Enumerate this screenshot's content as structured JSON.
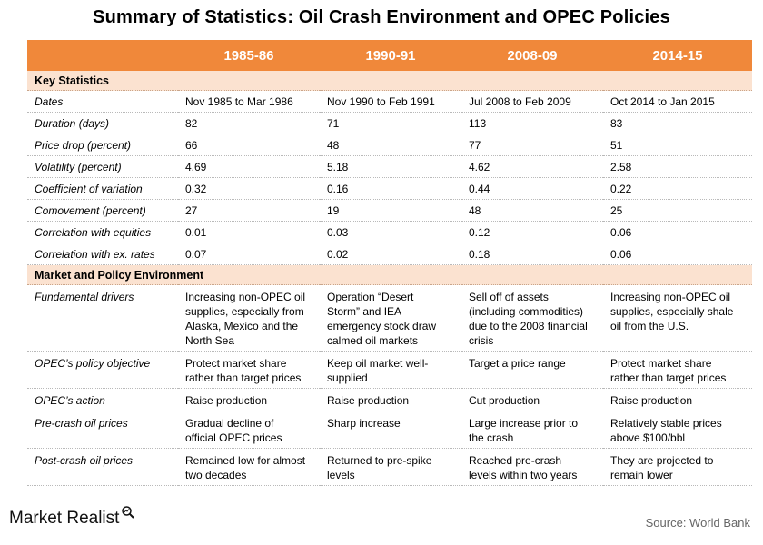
{
  "title": "Summary of Statistics: Oil Crash Environment and OPEC Policies",
  "columns": [
    "1985-86",
    "1990-91",
    "2008-09",
    "2014-15"
  ],
  "sections": {
    "key_stats": "Key Statistics",
    "market_env": "Market and Policy Environment"
  },
  "key_stats_rows": [
    {
      "label": "Dates",
      "values": [
        "Nov 1985 to Mar 1986",
        "Nov 1990 to Feb 1991",
        "Jul 2008 to Feb 2009",
        "Oct 2014 to Jan 2015"
      ]
    },
    {
      "label": "Duration (days)",
      "values": [
        "82",
        "71",
        "113",
        "83"
      ]
    },
    {
      "label": "Price drop (percent)",
      "values": [
        "66",
        "48",
        "77",
        "51"
      ]
    },
    {
      "label": "Volatility (percent)",
      "values": [
        "4.69",
        "5.18",
        "4.62",
        "2.58"
      ]
    },
    {
      "label": "Coefficient of variation",
      "values": [
        "0.32",
        "0.16",
        "0.44",
        "0.22"
      ]
    },
    {
      "label": "Comovement (percent)",
      "values": [
        "27",
        "19",
        "48",
        "25"
      ]
    },
    {
      "label": "Correlation with equities",
      "values": [
        "0.01",
        "0.03",
        "0.12",
        "0.06"
      ]
    },
    {
      "label": "Correlation with ex. rates",
      "values": [
        "0.07",
        "0.02",
        "0.18",
        "0.06"
      ]
    }
  ],
  "policy_rows": [
    {
      "label": "Fundamental drivers",
      "values": [
        "Increasing non-OPEC oil supplies, especially from Alaska, Mexico and the North Sea",
        "Operation “Desert Storm” and IEA emergency stock draw calmed oil markets",
        "Sell off of assets (including commodities) due to the 2008 financial crisis",
        "Increasing non-OPEC oil supplies, especially shale oil from the U.S."
      ]
    },
    {
      "label": "OPEC’s policy objective",
      "values": [
        "Protect market share rather than target prices",
        "Keep oil market well-supplied",
        "Target a price range",
        "Protect market share rather than target prices"
      ]
    },
    {
      "label": "OPEC’s action",
      "values": [
        "Raise production",
        "Raise production",
        "Cut production",
        "Raise production"
      ]
    },
    {
      "label": "Pre-crash oil prices",
      "values": [
        "Gradual decline of official OPEC prices",
        "Sharp increase",
        "Large increase prior to the crash",
        "Relatively stable prices above $100/bbl"
      ]
    },
    {
      "label": "Post-crash oil prices",
      "values": [
        "Remained low for almost two decades",
        "Returned to pre-spike levels",
        "Reached pre-crash levels within two years",
        "They are projected to remain lower"
      ]
    }
  ],
  "logo_text": "Market Realist",
  "logo_icon": "magnifier-chart-icon",
  "source": "Source: World Bank"
}
